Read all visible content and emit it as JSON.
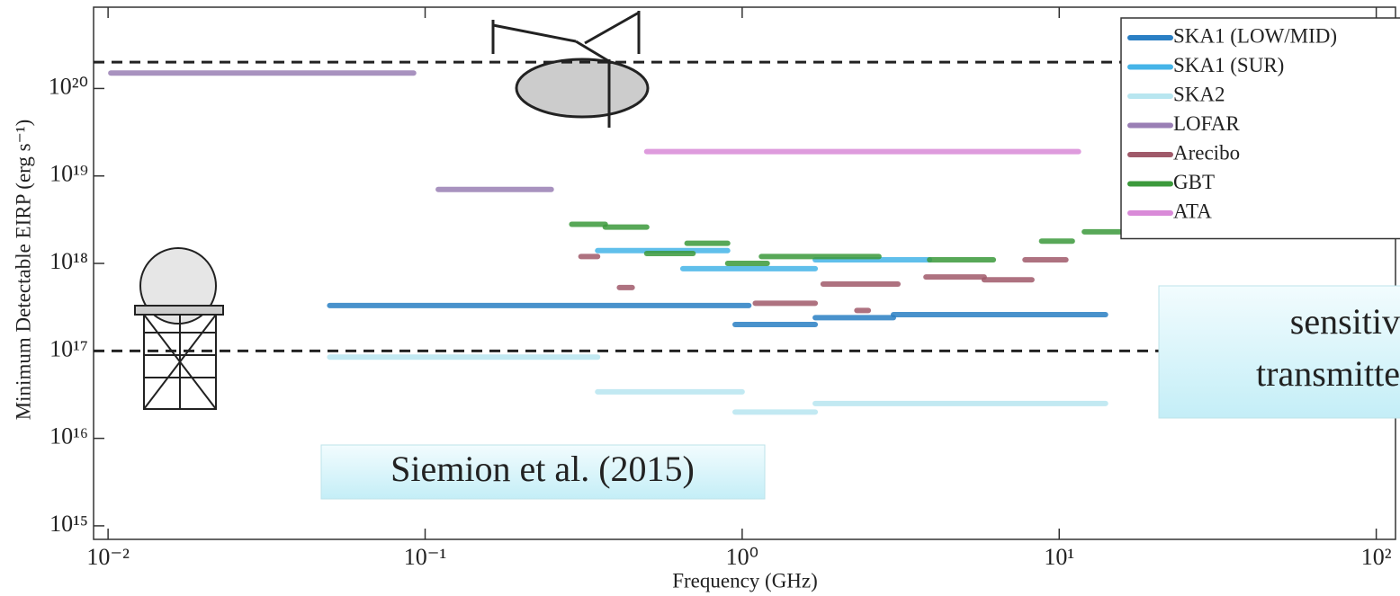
{
  "chart_data": {
    "type": "segments",
    "xlabel": "Frequency (GHz)",
    "ylabel": "Minimum Detectable EIRP (erg s⁻¹)",
    "xscale": "log",
    "yscale": "log",
    "xlim": [
      0.009,
      115
    ],
    "ylim": [
      700000000000000.0,
      8.5e+20
    ],
    "xticks": [
      {
        "value": 0.01,
        "label": "10⁻²"
      },
      {
        "value": 0.1,
        "label": "10⁻¹"
      },
      {
        "value": 1,
        "label": "10⁰"
      },
      {
        "value": 10,
        "label": "10¹"
      },
      {
        "value": 100,
        "label": "10²"
      }
    ],
    "yticks": [
      {
        "value": 1000000000000000.0,
        "label": "10¹⁵"
      },
      {
        "value": 1e+16,
        "label": "10¹⁶"
      },
      {
        "value": 1e+17,
        "label": "10¹⁷"
      },
      {
        "value": 1e+18,
        "label": "10¹⁸"
      },
      {
        "value": 1e+19,
        "label": "10¹⁹"
      },
      {
        "value": 1e+20,
        "label": "10²⁰"
      }
    ],
    "hlines": [
      2e+20,
      1e+17
    ],
    "legend": "upper right",
    "series": [
      {
        "name": "SKA1 (LOW/MID)",
        "color": "#2a7fc4",
        "segments": [
          {
            "x": [
              0.05,
              1.05
            ],
            "y": 3.3e+17
          },
          {
            "x": [
              0.95,
              1.7
            ],
            "y": 2e+17
          },
          {
            "x": [
              1.7,
              3
            ],
            "y": 2.4e+17
          },
          {
            "x": [
              3,
              14
            ],
            "y": 2.6e+17
          }
        ]
      },
      {
        "name": "SKA1 (SUR)",
        "color": "#45b4e8",
        "segments": [
          {
            "x": [
              0.35,
              0.9
            ],
            "y": 1.4e+18
          },
          {
            "x": [
              0.65,
              1.7
            ],
            "y": 8.7e+17
          },
          {
            "x": [
              1.7,
              3.9
            ],
            "y": 1.1e+18
          }
        ]
      },
      {
        "name": "SKA2",
        "color": "#b8e6f0",
        "segments": [
          {
            "x": [
              0.05,
              0.35
            ],
            "y": 8.5e+16
          },
          {
            "x": [
              0.35,
              1.0
            ],
            "y": 3.4e+16
          },
          {
            "x": [
              0.95,
              1.7
            ],
            "y": 2e+16
          },
          {
            "x": [
              1.7,
              14
            ],
            "y": 2.5e+16
          }
        ]
      },
      {
        "name": "LOFAR",
        "color": "#9a7fb5",
        "segments": [
          {
            "x": [
              0.0102,
              0.092
            ],
            "y": 1.5e+20
          },
          {
            "x": [
              0.11,
              0.25
            ],
            "y": 7e+18
          }
        ]
      },
      {
        "name": "Arecibo",
        "color": "#a05a6a",
        "segments": [
          {
            "x": [
              0.31,
              0.35
            ],
            "y": 1.2e+18
          },
          {
            "x": [
              0.41,
              0.45
            ],
            "y": 5.3e+17
          },
          {
            "x": [
              1.1,
              1.7
            ],
            "y": 3.5e+17
          },
          {
            "x": [
              1.8,
              3.1
            ],
            "y": 5.8e+17
          },
          {
            "x": [
              2.3,
              2.5
            ],
            "y": 2.9e+17
          },
          {
            "x": [
              3.8,
              5.8
            ],
            "y": 7e+17
          },
          {
            "x": [
              5.8,
              8.2
            ],
            "y": 6.5e+17
          },
          {
            "x": [
              7.8,
              10.5
            ],
            "y": 1.1e+18
          }
        ]
      },
      {
        "name": "GBT",
        "color": "#3c9a3c",
        "segments": [
          {
            "x": [
              0.29,
              0.37
            ],
            "y": 2.8e+18
          },
          {
            "x": [
              0.37,
              0.5
            ],
            "y": 2.6e+18
          },
          {
            "x": [
              0.5,
              0.7
            ],
            "y": 1.3e+18
          },
          {
            "x": [
              0.67,
              0.9
            ],
            "y": 1.7e+18
          },
          {
            "x": [
              0.9,
              1.2
            ],
            "y": 1e+18
          },
          {
            "x": [
              1.15,
              2.7
            ],
            "y": 1.2e+18
          },
          {
            "x": [
              3.9,
              6.2
            ],
            "y": 1.1e+18
          },
          {
            "x": [
              8.8,
              11
            ],
            "y": 1.8e+18
          },
          {
            "x": [
              12,
              16
            ],
            "y": 2.3e+18
          }
        ]
      },
      {
        "name": "ATA",
        "color": "#d98ad8",
        "segments": [
          {
            "x": [
              0.5,
              11.5
            ],
            "y": 1.9e+19
          }
        ]
      }
    ],
    "annotations": [
      "Siemion et al. (2015)",
      "sensitiv",
      "transmitte"
    ]
  }
}
